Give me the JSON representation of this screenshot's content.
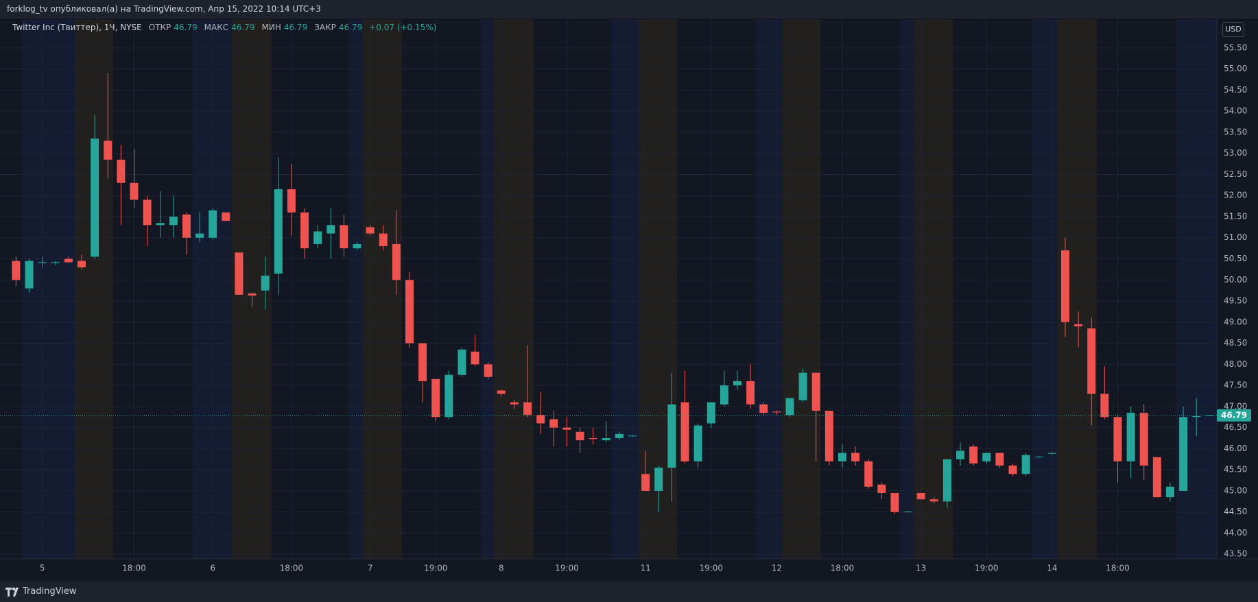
{
  "header": {
    "text": "forklog_tv опубликовал(а) на TradingView.com, Апр 15, 2022 10:14 UTC+3"
  },
  "footer": {
    "brand": "TradingView"
  },
  "chart_data": {
    "type": "candlestick",
    "symbol": "Twitter Inc (Твиттер), 1Ч, NYSE",
    "legend": {
      "open_label": "ОТКР",
      "open": 46.79,
      "high_label": "МАКС",
      "high": 46.79,
      "low_label": "МИН",
      "low": 46.79,
      "close_label": "ЗАКР",
      "close": 46.79,
      "change": "+0.07 (+0.15%)"
    },
    "currency": "USD",
    "up_color": "#26a69a",
    "down_color": "#ef5350",
    "grid": true,
    "categories": [
      null,
      null,
      "5",
      null,
      null,
      null,
      null,
      null,
      null,
      "18:00",
      null,
      null,
      null,
      null,
      null,
      "6",
      null,
      null,
      null,
      null,
      null,
      "18:00",
      null,
      null,
      null,
      null,
      null,
      "7",
      null,
      null,
      null,
      null,
      "19:00",
      null,
      null,
      null,
      null,
      "8",
      null,
      null,
      null,
      null,
      "19:00",
      null,
      null,
      null,
      null,
      null,
      "11",
      null,
      null,
      null,
      null,
      "19:00",
      null,
      null,
      null,
      null,
      "12",
      null,
      null,
      null,
      null,
      "18:00",
      null,
      null,
      null,
      null,
      null,
      "13",
      null,
      null,
      null,
      null,
      "19:00",
      null,
      null,
      null,
      null,
      "14",
      null,
      null,
      null,
      null,
      "18:00",
      null,
      null,
      null,
      null,
      null,
      null,
      null
    ],
    "open": [
      50.45,
      49.8,
      50.4,
      50.4,
      50.5,
      50.45,
      50.55,
      53.3,
      52.85,
      52.3,
      51.9,
      51.3,
      51.3,
      51.55,
      51.0,
      51.0,
      51.6,
      50.65,
      49.68,
      49.75,
      50.15,
      52.15,
      51.6,
      50.85,
      51.1,
      51.3,
      50.75,
      51.25,
      51.1,
      50.85,
      50.0,
      48.5,
      47.65,
      46.75,
      47.75,
      48.3,
      48.0,
      47.38,
      47.1,
      47.1,
      46.8,
      46.7,
      46.5,
      46.4,
      46.25,
      46.2,
      46.25,
      46.3,
      45.4,
      45.0,
      45.55,
      47.1,
      45.7,
      46.6,
      47.05,
      47.5,
      47.6,
      47.05,
      46.88,
      46.8,
      47.15,
      47.8,
      46.9,
      45.7,
      45.9,
      45.7,
      45.15,
      44.95,
      44.5,
      44.95,
      44.8,
      44.75,
      45.75,
      46.05,
      45.7,
      45.9,
      45.6,
      45.4,
      45.8,
      45.88,
      50.7,
      48.95,
      48.85,
      47.3,
      46.75,
      45.7,
      46.85,
      45.8,
      44.85,
      45.0,
      46.75,
      46.79
    ],
    "high": [
      50.55,
      50.5,
      50.55,
      50.45,
      50.55,
      50.6,
      53.9,
      54.9,
      53.2,
      53.1,
      52.0,
      52.1,
      52.0,
      51.6,
      51.6,
      51.7,
      51.6,
      50.65,
      49.7,
      50.55,
      52.9,
      52.75,
      51.7,
      51.3,
      51.7,
      51.55,
      50.9,
      51.3,
      51.3,
      51.65,
      50.2,
      48.5,
      47.65,
      47.85,
      48.4,
      48.7,
      48.05,
      47.4,
      47.15,
      48.45,
      47.35,
      46.9,
      46.75,
      46.5,
      46.5,
      46.65,
      46.4,
      46.32,
      45.95,
      45.6,
      47.8,
      47.85,
      46.6,
      47.1,
      47.85,
      47.85,
      48.0,
      47.1,
      46.9,
      47.2,
      47.9,
      47.8,
      46.9,
      46.1,
      46.05,
      45.75,
      45.2,
      44.95,
      44.52,
      44.95,
      44.85,
      45.75,
      46.15,
      46.1,
      45.9,
      45.9,
      45.65,
      45.9,
      45.82,
      45.9,
      51.0,
      49.25,
      49.1,
      47.95,
      46.8,
      47.0,
      47.05,
      45.8,
      45.2,
      47.0,
      47.2,
      46.8
    ],
    "low": [
      49.85,
      49.7,
      50.3,
      50.35,
      50.4,
      50.25,
      50.5,
      52.4,
      51.3,
      51.7,
      50.8,
      51.0,
      51.0,
      50.6,
      50.9,
      50.95,
      51.4,
      49.65,
      49.35,
      49.3,
      49.65,
      51.05,
      50.5,
      50.75,
      50.5,
      50.55,
      50.7,
      51.05,
      50.7,
      49.65,
      48.4,
      47.1,
      46.65,
      46.7,
      47.7,
      47.95,
      47.65,
      47.25,
      46.95,
      46.75,
      46.35,
      46.05,
      46.05,
      45.9,
      46.1,
      46.15,
      46.2,
      46.28,
      45.0,
      44.5,
      44.75,
      45.65,
      45.55,
      46.5,
      47.0,
      47.4,
      46.95,
      46.8,
      46.8,
      46.75,
      47.1,
      45.7,
      45.6,
      45.55,
      45.6,
      45.05,
      44.8,
      44.45,
      44.48,
      44.8,
      44.7,
      44.6,
      45.6,
      45.6,
      45.65,
      45.55,
      45.35,
      45.35,
      45.78,
      45.86,
      48.65,
      48.4,
      46.55,
      46.7,
      45.2,
      45.3,
      45.25,
      44.85,
      44.75,
      45.0,
      46.3,
      46.78
    ],
    "close": [
      50.0,
      50.45,
      50.42,
      50.42,
      50.42,
      50.3,
      53.35,
      52.85,
      52.3,
      51.9,
      51.3,
      51.35,
      51.5,
      51.0,
      51.1,
      51.65,
      51.4,
      49.65,
      49.63,
      50.1,
      52.15,
      51.6,
      50.75,
      51.15,
      51.3,
      50.75,
      50.85,
      51.1,
      50.8,
      50.0,
      48.5,
      47.6,
      46.75,
      47.75,
      48.35,
      48.0,
      47.7,
      47.3,
      47.05,
      46.8,
      46.6,
      46.5,
      46.45,
      46.2,
      46.23,
      46.25,
      46.35,
      46.31,
      45.0,
      45.55,
      47.05,
      45.7,
      46.55,
      47.1,
      47.5,
      47.6,
      47.05,
      46.85,
      46.86,
      47.2,
      47.8,
      46.9,
      45.7,
      45.9,
      45.7,
      45.1,
      44.95,
      44.5,
      44.51,
      44.8,
      44.75,
      45.75,
      45.95,
      45.65,
      45.9,
      45.6,
      45.4,
      45.85,
      45.81,
      45.9,
      49.0,
      48.9,
      47.3,
      46.75,
      45.7,
      46.85,
      45.6,
      44.85,
      45.1,
      46.75,
      46.77,
      46.79
    ],
    "ylim": [
      43.39,
      56.18
    ],
    "yticks": [
      {
        "value": 43.5,
        "label": "43.50"
      },
      {
        "value": 44,
        "label": "44.00"
      },
      {
        "value": 44.5,
        "label": "44.50"
      },
      {
        "value": 45,
        "label": "45.00"
      },
      {
        "value": 45.5,
        "label": "45.50"
      },
      {
        "value": 46,
        "label": "46.00"
      },
      {
        "value": 46.5,
        "label": "46.50"
      },
      {
        "value": 47,
        "label": "47.00"
      },
      {
        "value": 47.5,
        "label": "47.50"
      },
      {
        "value": 48,
        "label": "48.00"
      },
      {
        "value": 48.5,
        "label": "48.50"
      },
      {
        "value": 49,
        "label": "49.00"
      },
      {
        "value": 49.5,
        "label": "49.50"
      },
      {
        "value": 50,
        "label": "50.00"
      },
      {
        "value": 50.5,
        "label": "50.50"
      },
      {
        "value": 51,
        "label": "51.00"
      },
      {
        "value": 51.5,
        "label": "51.50"
      },
      {
        "value": 52,
        "label": "52.00"
      },
      {
        "value": 52.5,
        "label": "52.50"
      },
      {
        "value": 53,
        "label": "53.00"
      },
      {
        "value": 53.5,
        "label": "53.50"
      },
      {
        "value": 54,
        "label": "54.00"
      },
      {
        "value": 54.5,
        "label": "54.50"
      },
      {
        "value": 55,
        "label": "55.00"
      },
      {
        "value": 55.5,
        "label": "55.50"
      }
    ]
  }
}
